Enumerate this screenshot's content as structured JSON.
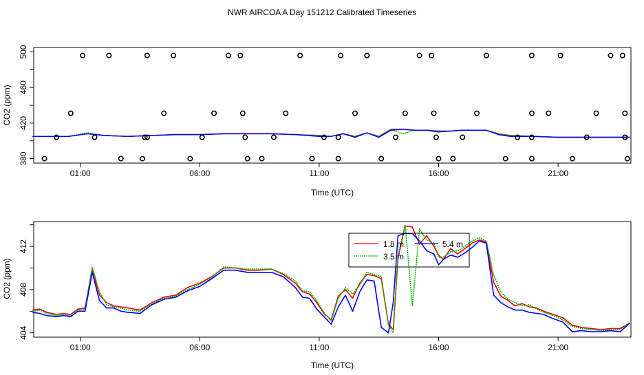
{
  "title": "NWR AIRCOA A  Day 151212  Calibrated Timeseries",
  "colors": {
    "h1_8": "#ff0000",
    "h3_5": "#00bb00",
    "h5_4": "#0000ff",
    "axis": "#000000"
  },
  "chart_data": [
    {
      "type": "scatter",
      "xlabel": "Time (UTC)",
      "ylabel": "CO2 (ppm)",
      "xlim": [
        -0.95,
        24.05
      ],
      "ylim": [
        375,
        505
      ],
      "x_ticks": [
        1,
        6,
        11,
        16,
        21
      ],
      "x_tick_labels": [
        "01:00",
        "06:00",
        "11:00",
        "16:00",
        "21:00"
      ],
      "y_ticks": [
        380,
        420,
        460,
        500
      ],
      "y_tick_labels": [
        "380",
        "420",
        "460",
        "500"
      ],
      "y_minor_ticks": [
        400,
        440,
        480
      ],
      "points": {
        "x": [
          1.1,
          2.2,
          3.8,
          4.9,
          7.2,
          7.7,
          10.2,
          11.9,
          13.0,
          15.2,
          15.7,
          18.0,
          19.9,
          21.1,
          23.2,
          23.7,
          0.6,
          4.5,
          6.6,
          7.8,
          9.6,
          12.5,
          14.6,
          15.8,
          17.6,
          19.9,
          20.6,
          22.6,
          23.8,
          0.0,
          1.6,
          3.7,
          3.8,
          6.1,
          7.9,
          9.1,
          11.2,
          11.8,
          14.2,
          15.9,
          17.0,
          19.3,
          19.9,
          22.2,
          23.8,
          -0.5,
          2.7,
          3.6,
          5.6,
          8.0,
          8.6,
          10.7,
          11.8,
          13.6,
          16.0,
          16.6,
          18.8,
          19.9,
          21.6,
          23.9
        ],
        "y": [
          496,
          496,
          496,
          496,
          496,
          496,
          496,
          496,
          496,
          496,
          496,
          496,
          496,
          496,
          496,
          496,
          431,
          431,
          431,
          431,
          431,
          431,
          431,
          431,
          431,
          431,
          431,
          431,
          431,
          404,
          404,
          404,
          404,
          404,
          404,
          404,
          404,
          404,
          404,
          404,
          404,
          404,
          404,
          404,
          404,
          380,
          380,
          380,
          380,
          380,
          380,
          380,
          380,
          380,
          380,
          380,
          380,
          380,
          380,
          380
        ]
      },
      "series": [
        {
          "x": [
            -1.0,
            0.5,
            1.3,
            2.0,
            3.0,
            4.0,
            5.0,
            6.0,
            7.0,
            8.0,
            9.0,
            10.0,
            11.0,
            11.5,
            12.0,
            12.5,
            13.0,
            13.5,
            14.0,
            14.5,
            15.0,
            15.5,
            16.0,
            16.5,
            17.0,
            17.5,
            18.0,
            18.5,
            19.0,
            20.0,
            21.0,
            22.0,
            23.0,
            24.0
          ],
          "values": [
            405,
            405,
            408,
            406,
            405,
            406,
            407,
            407,
            408,
            408,
            408,
            407,
            406,
            405,
            408,
            405,
            409,
            405,
            413,
            413,
            412,
            412,
            411,
            411,
            412,
            412,
            412,
            408,
            406,
            405,
            404,
            404,
            404,
            404
          ]
        },
        {
          "x": [
            -1.0,
            0.5,
            1.3,
            2.0,
            3.0,
            4.0,
            5.0,
            6.0,
            7.0,
            8.0,
            9.0,
            10.0,
            11.0,
            11.5,
            12.0,
            12.5,
            13.0,
            13.5,
            14.0,
            14.5,
            15.0,
            15.5,
            16.0,
            16.5,
            17.0,
            17.5,
            18.0,
            18.5,
            19.0,
            20.0,
            21.0,
            22.0,
            23.0,
            24.0
          ],
          "values": [
            405,
            405,
            409,
            406,
            405,
            406,
            407,
            407,
            408,
            408,
            408,
            407,
            406,
            405,
            408,
            405,
            409,
            405,
            413,
            408,
            412,
            412,
            411,
            411,
            412,
            412,
            412,
            408,
            406,
            405,
            404,
            404,
            404,
            404
          ]
        },
        {
          "x": [
            -1.0,
            0.5,
            1.3,
            2.0,
            3.0,
            4.0,
            5.0,
            6.0,
            7.0,
            8.0,
            9.0,
            10.0,
            11.0,
            11.5,
            12.0,
            12.5,
            13.0,
            13.5,
            14.0,
            14.5,
            15.0,
            15.5,
            16.0,
            16.5,
            17.0,
            17.5,
            18.0,
            18.5,
            19.0,
            20.0,
            21.0,
            22.0,
            23.0,
            24.0
          ],
          "values": [
            405,
            405,
            408,
            406,
            405,
            406,
            407,
            407,
            408,
            408,
            408,
            407,
            405,
            405,
            408,
            404,
            409,
            404,
            412,
            413,
            412,
            412,
            410,
            411,
            412,
            412,
            412,
            407,
            405,
            405,
            404,
            404,
            404,
            404
          ]
        }
      ]
    },
    {
      "type": "line",
      "xlabel": "Time (UTC)",
      "ylabel": "CO2 (ppm)",
      "xlim": [
        -0.95,
        24.05
      ],
      "ylim": [
        403.6,
        414.3
      ],
      "x_ticks": [
        1,
        6,
        11,
        16,
        21
      ],
      "x_tick_labels": [
        "01:00",
        "06:00",
        "11:00",
        "16:00",
        "21:00"
      ],
      "y_ticks": [
        404,
        408,
        412
      ],
      "y_tick_labels": [
        "404",
        "408",
        "412"
      ],
      "y_minor_ticks": [
        406,
        410,
        414
      ],
      "legend": {
        "placement": "top-right",
        "entries": [
          "1.8 m",
          "3.5 m",
          "5.4 m"
        ]
      },
      "series": [
        {
          "name": "1.8 m",
          "x": [
            -1.0,
            -0.7,
            -0.4,
            0.0,
            0.3,
            0.6,
            0.9,
            1.2,
            1.5,
            1.8,
            2.1,
            2.4,
            2.7,
            3.0,
            3.5,
            4.0,
            4.5,
            5.0,
            5.5,
            6.0,
            6.5,
            7.0,
            7.5,
            8.0,
            8.5,
            9.0,
            9.5,
            10.0,
            10.3,
            10.6,
            10.9,
            11.2,
            11.5,
            11.8,
            12.1,
            12.4,
            12.7,
            13.0,
            13.3,
            13.6,
            13.9,
            14.1,
            14.3,
            14.6,
            14.9,
            15.2,
            15.5,
            15.8,
            16.0,
            16.2,
            16.5,
            16.8,
            17.1,
            17.4,
            17.7,
            18.0,
            18.3,
            18.6,
            18.9,
            19.2,
            19.5,
            19.8,
            20.1,
            20.4,
            20.8,
            21.2,
            21.6,
            22.0,
            22.4,
            22.8,
            23.2,
            23.6,
            24.0
          ],
          "values": [
            406.1,
            406.2,
            405.9,
            405.7,
            405.8,
            405.7,
            406.2,
            406.3,
            409.9,
            407.5,
            406.8,
            406.5,
            406.4,
            406.3,
            406.1,
            406.8,
            407.3,
            407.5,
            408.2,
            408.6,
            409.2,
            410.0,
            410.0,
            409.8,
            409.8,
            409.9,
            409.4,
            408.6,
            407.8,
            407.6,
            406.8,
            405.8,
            405.2,
            407.4,
            408.0,
            407.2,
            408.6,
            409.4,
            409.3,
            409.0,
            404.8,
            404.3,
            410.9,
            413.9,
            413.8,
            412.2,
            413.0,
            412.0,
            411.2,
            410.8,
            411.8,
            411.3,
            411.8,
            412.3,
            412.6,
            412.4,
            408.7,
            407.4,
            407.0,
            406.5,
            406.7,
            406.4,
            406.3,
            406.0,
            405.7,
            405.4,
            404.7,
            404.5,
            404.4,
            404.3,
            404.4,
            404.4,
            404.9
          ]
        },
        {
          "name": "3.5 m",
          "x": [
            -1.0,
            -0.7,
            -0.4,
            0.0,
            0.3,
            0.6,
            0.9,
            1.2,
            1.5,
            1.8,
            2.1,
            2.4,
            2.7,
            3.0,
            3.5,
            4.0,
            4.5,
            5.0,
            5.5,
            6.0,
            6.5,
            7.0,
            7.5,
            8.0,
            8.5,
            9.0,
            9.5,
            10.0,
            10.3,
            10.6,
            10.9,
            11.2,
            11.5,
            11.8,
            12.1,
            12.4,
            12.7,
            13.0,
            13.3,
            13.6,
            13.9,
            14.1,
            14.3,
            14.6,
            14.9,
            15.2,
            15.5,
            15.8,
            16.0,
            16.2,
            16.5,
            16.8,
            17.1,
            17.4,
            17.7,
            18.0,
            18.3,
            18.6,
            18.9,
            19.2,
            19.5,
            19.8,
            20.1,
            20.4,
            20.8,
            21.2,
            21.6,
            22.0,
            22.4,
            22.8,
            23.2,
            23.6,
            24.0
          ],
          "values": [
            406.0,
            406.1,
            405.8,
            405.6,
            405.7,
            405.6,
            406.1,
            406.2,
            410.1,
            407.8,
            406.6,
            406.4,
            406.3,
            406.1,
            406.0,
            406.7,
            407.2,
            407.4,
            408.0,
            408.5,
            409.1,
            410.1,
            410.0,
            409.9,
            409.9,
            409.9,
            409.5,
            408.8,
            407.9,
            407.8,
            407.0,
            405.9,
            405.1,
            407.2,
            408.2,
            407.6,
            408.4,
            409.6,
            409.4,
            409.2,
            404.7,
            404.0,
            411.2,
            414.0,
            406.5,
            413.6,
            412.6,
            412.3,
            411.0,
            411.0,
            411.5,
            411.6,
            412.0,
            412.5,
            412.8,
            412.5,
            409.4,
            407.8,
            407.1,
            406.8,
            406.5,
            406.6,
            406.2,
            405.9,
            405.6,
            405.2,
            404.6,
            404.4,
            404.3,
            404.2,
            404.3,
            404.3,
            404.9
          ]
        },
        {
          "name": "5.4 m",
          "x": [
            -1.0,
            -0.7,
            -0.4,
            0.0,
            0.3,
            0.6,
            0.9,
            1.2,
            1.5,
            1.8,
            2.1,
            2.4,
            2.7,
            3.0,
            3.5,
            4.0,
            4.5,
            5.0,
            5.5,
            6.0,
            6.5,
            7.0,
            7.5,
            8.0,
            8.5,
            9.0,
            9.5,
            10.0,
            10.3,
            10.6,
            10.9,
            11.2,
            11.5,
            11.8,
            12.1,
            12.4,
            12.7,
            13.0,
            13.3,
            13.6,
            13.9,
            14.1,
            14.3,
            14.6,
            14.9,
            15.2,
            15.5,
            15.8,
            16.0,
            16.2,
            16.5,
            16.8,
            17.1,
            17.4,
            17.7,
            18.0,
            18.3,
            18.6,
            18.9,
            19.2,
            19.5,
            19.8,
            20.1,
            20.4,
            20.8,
            21.2,
            21.6,
            22.0,
            22.4,
            22.8,
            23.2,
            23.6,
            24.0
          ],
          "values": [
            405.9,
            405.8,
            405.6,
            405.5,
            405.6,
            405.5,
            406.0,
            406.0,
            409.6,
            407.0,
            406.3,
            406.3,
            406.0,
            405.9,
            405.8,
            406.6,
            407.1,
            407.3,
            407.9,
            408.3,
            409.0,
            409.8,
            409.8,
            409.6,
            409.6,
            409.6,
            409.2,
            408.2,
            407.3,
            407.2,
            406.2,
            405.5,
            404.8,
            406.4,
            407.5,
            406.0,
            407.8,
            408.9,
            408.8,
            404.5,
            404.0,
            406.8,
            413.0,
            413.2,
            413.2,
            412.5,
            411.6,
            411.3,
            410.3,
            410.8,
            411.2,
            411.0,
            411.4,
            411.9,
            412.5,
            412.3,
            407.5,
            406.8,
            406.4,
            406.1,
            406.1,
            405.9,
            405.8,
            405.7,
            405.3,
            405.0,
            404.1,
            404.2,
            404.1,
            404.1,
            404.2,
            404.1,
            404.9
          ]
        }
      ]
    }
  ]
}
